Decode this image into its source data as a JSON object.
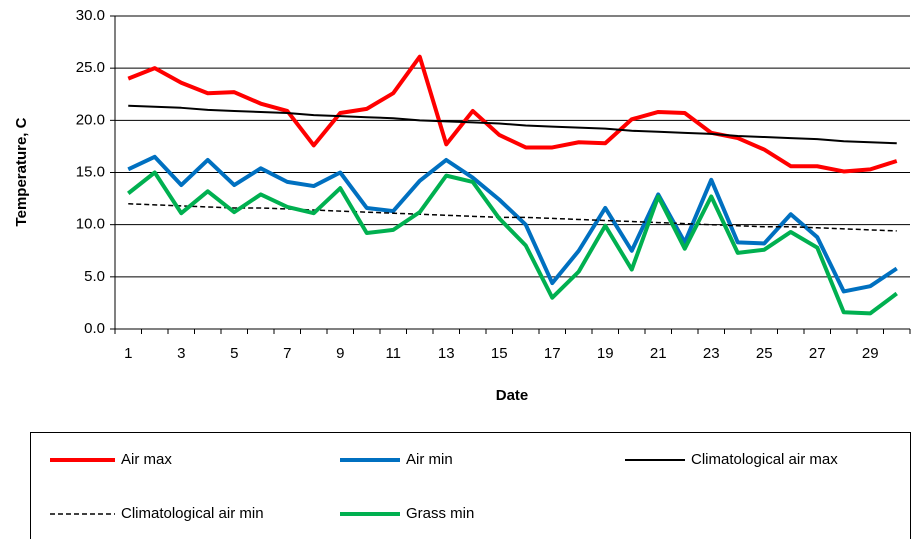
{
  "chart_data": {
    "type": "line",
    "x_label": "Date",
    "y_label": "Temperature, C",
    "categories": [
      "1",
      null,
      "3",
      null,
      "5",
      null,
      "7",
      null,
      "9",
      null,
      "11",
      null,
      "13",
      null,
      "15",
      null,
      "17",
      null,
      "19",
      null,
      "21",
      null,
      "23",
      null,
      "25",
      null,
      "27",
      null,
      "29",
      null
    ],
    "ylim": [
      0,
      30
    ],
    "yticks": [
      {
        "value": 0,
        "label": "0.0"
      },
      {
        "value": 5,
        "label": "5.0"
      },
      {
        "value": 10,
        "label": "10.0"
      },
      {
        "value": 15,
        "label": "15.0"
      },
      {
        "value": 20,
        "label": "20.0"
      },
      {
        "value": 25,
        "label": "25.0"
      },
      {
        "value": 30,
        "label": "30.0"
      }
    ],
    "grid": true,
    "legend": "bottom",
    "series": [
      {
        "name": "Air max",
        "color": "#ff0000",
        "style": "solid",
        "width": 4,
        "values": [
          24.0,
          25.0,
          23.6,
          22.6,
          22.7,
          21.6,
          20.9,
          17.6,
          20.7,
          21.1,
          22.6,
          26.1,
          17.7,
          20.9,
          18.6,
          17.4,
          17.4,
          17.9,
          17.8,
          20.1,
          20.8,
          20.7,
          18.8,
          18.3,
          17.2,
          15.6,
          15.6,
          15.1,
          15.3,
          16.1
        ]
      },
      {
        "name": "Air min",
        "color": "#0070c0",
        "style": "solid",
        "width": 4,
        "values": [
          15.3,
          16.5,
          13.8,
          16.2,
          13.8,
          15.4,
          14.1,
          13.7,
          15.0,
          11.6,
          11.3,
          14.2,
          16.2,
          14.5,
          12.4,
          10.0,
          4.4,
          7.5,
          11.6,
          7.5,
          12.9,
          8.3,
          14.3,
          8.3,
          8.2,
          11.0,
          8.8,
          3.6,
          4.1,
          5.8
        ]
      },
      {
        "name": "Climatological air max",
        "color": "#000000",
        "style": "solid",
        "width": 2,
        "values": [
          21.4,
          21.3,
          21.2,
          21.0,
          20.9,
          20.8,
          20.7,
          20.5,
          20.4,
          20.3,
          20.2,
          20.0,
          19.9,
          19.8,
          19.7,
          19.5,
          19.4,
          19.3,
          19.2,
          19.0,
          18.9,
          18.8,
          18.7,
          18.5,
          18.4,
          18.3,
          18.2,
          18.0,
          17.9,
          17.8
        ]
      },
      {
        "name": "Climatological air min",
        "color": "#000000",
        "style": "dashed",
        "width": 1.5,
        "values": [
          12.0,
          11.9,
          11.8,
          11.7,
          11.6,
          11.6,
          11.5,
          11.4,
          11.3,
          11.2,
          11.1,
          11.0,
          10.9,
          10.8,
          10.7,
          10.7,
          10.6,
          10.5,
          10.4,
          10.3,
          10.2,
          10.1,
          10.0,
          9.9,
          9.8,
          9.8,
          9.7,
          9.6,
          9.5,
          9.4
        ]
      },
      {
        "name": "Grass min",
        "color": "#00b050",
        "style": "solid",
        "width": 4,
        "values": [
          13.0,
          15.0,
          11.1,
          13.2,
          11.2,
          12.9,
          11.7,
          11.1,
          13.5,
          9.2,
          9.5,
          11.2,
          14.7,
          14.1,
          10.6,
          8.0,
          3.0,
          5.5,
          9.9,
          5.7,
          12.7,
          7.7,
          12.7,
          7.3,
          7.6,
          9.3,
          7.8,
          1.6,
          1.5,
          3.4
        ]
      }
    ]
  }
}
